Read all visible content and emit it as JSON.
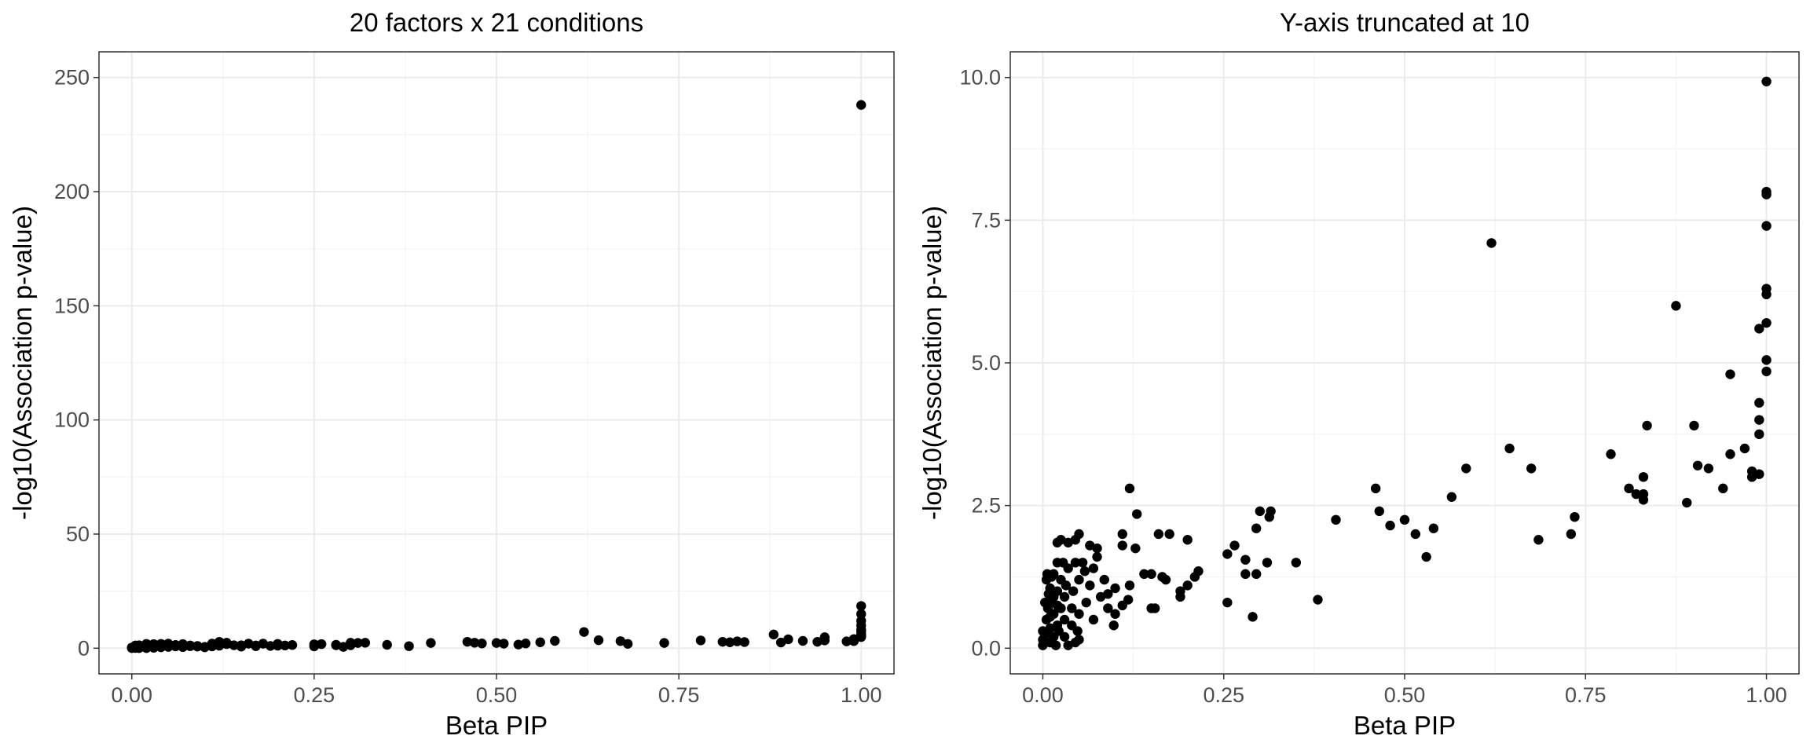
{
  "chart_data": [
    {
      "type": "scatter",
      "title": "20 factors x 21 conditions",
      "xlabel": "Beta PIP",
      "ylabel": "-log10(Association p-value)",
      "xlim": [
        0,
        1
      ],
      "ylim": [
        0,
        250
      ],
      "x_ticks": [
        "0.00",
        "0.25",
        "0.50",
        "0.75",
        "1.00"
      ],
      "y_ticks": [
        "0",
        "50",
        "100",
        "150",
        "200",
        "250"
      ],
      "grid": true,
      "points": [
        [
          1.0,
          238
        ],
        [
          1.0,
          18.5
        ],
        [
          1.0,
          15.0
        ],
        [
          1.0,
          12.0
        ],
        [
          1.0,
          9.9
        ],
        [
          1.0,
          8.0
        ],
        [
          1.0,
          7.4
        ],
        [
          1.0,
          6.2
        ],
        [
          1.0,
          5.6
        ],
        [
          1.0,
          4.9
        ],
        [
          0.99,
          4.0
        ],
        [
          0.99,
          3.1
        ],
        [
          0.98,
          3.0
        ],
        [
          0.95,
          4.8
        ],
        [
          0.95,
          3.4
        ],
        [
          0.94,
          2.8
        ],
        [
          0.92,
          3.2
        ],
        [
          0.9,
          3.9
        ],
        [
          0.89,
          2.5
        ],
        [
          0.88,
          6.0
        ],
        [
          0.84,
          2.7
        ],
        [
          0.83,
          3.0
        ],
        [
          0.82,
          2.6
        ],
        [
          0.81,
          2.8
        ],
        [
          0.78,
          3.4
        ],
        [
          0.73,
          2.3
        ],
        [
          0.68,
          1.9
        ],
        [
          0.67,
          3.1
        ],
        [
          0.64,
          3.5
        ],
        [
          0.62,
          7.1
        ],
        [
          0.58,
          3.2
        ],
        [
          0.56,
          2.6
        ],
        [
          0.54,
          2.1
        ],
        [
          0.53,
          1.6
        ],
        [
          0.51,
          2.0
        ],
        [
          0.5,
          2.3
        ],
        [
          0.48,
          2.1
        ],
        [
          0.47,
          2.4
        ],
        [
          0.46,
          2.8
        ],
        [
          0.41,
          2.3
        ],
        [
          0.38,
          0.9
        ],
        [
          0.35,
          1.5
        ],
        [
          0.32,
          2.4
        ],
        [
          0.31,
          2.3
        ],
        [
          0.3,
          2.4
        ],
        [
          0.3,
          2.1
        ],
        [
          0.3,
          1.3
        ],
        [
          0.29,
          0.6
        ],
        [
          0.28,
          1.3
        ],
        [
          0.28,
          1.5
        ],
        [
          0.26,
          1.8
        ],
        [
          0.25,
          1.7
        ],
        [
          0.25,
          0.8
        ],
        [
          0.22,
          1.4
        ],
        [
          0.21,
          1.2
        ],
        [
          0.2,
          1.1
        ],
        [
          0.2,
          1.9
        ],
        [
          0.19,
          1.0
        ],
        [
          0.18,
          2.0
        ],
        [
          0.17,
          1.2
        ],
        [
          0.17,
          0.9
        ],
        [
          0.16,
          2.0
        ],
        [
          0.15,
          0.7
        ],
        [
          0.15,
          1.3
        ],
        [
          0.14,
          1.3
        ],
        [
          0.13,
          2.4
        ],
        [
          0.13,
          1.8
        ],
        [
          0.12,
          2.8
        ],
        [
          0.12,
          1.1
        ],
        [
          0.11,
          2.0
        ],
        [
          0.11,
          0.8
        ],
        [
          0.1,
          0.6
        ],
        [
          0.1,
          0.4
        ],
        [
          0.09,
          1.0
        ],
        [
          0.09,
          0.7
        ],
        [
          0.08,
          1.2
        ],
        [
          0.08,
          0.9
        ],
        [
          0.07,
          1.6
        ],
        [
          0.07,
          1.8
        ],
        [
          0.07,
          0.5
        ],
        [
          0.06,
          1.4
        ],
        [
          0.06,
          1.1
        ],
        [
          0.06,
          0.8
        ],
        [
          0.05,
          2.0
        ],
        [
          0.05,
          1.5
        ],
        [
          0.05,
          1.2
        ],
        [
          0.05,
          0.6
        ],
        [
          0.04,
          1.9
        ],
        [
          0.04,
          1.5
        ],
        [
          0.04,
          1.0
        ],
        [
          0.04,
          0.4
        ],
        [
          0.03,
          1.8
        ],
        [
          0.03,
          1.4
        ],
        [
          0.03,
          0.9
        ],
        [
          0.03,
          0.5
        ],
        [
          0.03,
          0.2
        ],
        [
          0.02,
          1.9
        ],
        [
          0.02,
          1.5
        ],
        [
          0.02,
          1.1
        ],
        [
          0.02,
          0.7
        ],
        [
          0.02,
          0.3
        ],
        [
          0.02,
          0.05
        ],
        [
          0.01,
          1.3
        ],
        [
          0.01,
          1.0
        ],
        [
          0.01,
          0.8
        ],
        [
          0.01,
          0.6
        ],
        [
          0.01,
          0.4
        ],
        [
          0.01,
          0.2
        ],
        [
          0.01,
          0.05
        ],
        [
          0.005,
          1.2
        ],
        [
          0.005,
          0.5
        ],
        [
          0.005,
          0.1
        ],
        [
          0.0,
          0.3
        ],
        [
          0.0,
          0.05
        ]
      ]
    },
    {
      "type": "scatter",
      "title": "Y-axis truncated at 10",
      "xlabel": "Beta PIP",
      "ylabel": "-log10(Association p-value)",
      "xlim": [
        0,
        1
      ],
      "ylim": [
        0,
        10
      ],
      "x_ticks": [
        "0.00",
        "0.25",
        "0.50",
        "0.75",
        "1.00"
      ],
      "y_ticks": [
        "0.0",
        "2.5",
        "5.0",
        "7.5",
        "10.0"
      ],
      "grid": true,
      "points": [
        [
          1.0,
          9.93
        ],
        [
          1.0,
          8.0
        ],
        [
          1.0,
          7.95
        ],
        [
          1.0,
          7.4
        ],
        [
          1.0,
          6.3
        ],
        [
          1.0,
          6.2
        ],
        [
          1.0,
          5.7
        ],
        [
          0.99,
          5.6
        ],
        [
          1.0,
          5.05
        ],
        [
          1.0,
          4.85
        ],
        [
          0.99,
          4.3
        ],
        [
          0.99,
          4.0
        ],
        [
          0.99,
          3.75
        ],
        [
          0.98,
          3.1
        ],
        [
          0.98,
          3.0
        ],
        [
          0.99,
          3.05
        ],
        [
          0.97,
          3.5
        ],
        [
          0.95,
          4.8
        ],
        [
          0.95,
          3.4
        ],
        [
          0.94,
          2.8
        ],
        [
          0.92,
          3.15
        ],
        [
          0.9,
          3.9
        ],
        [
          0.905,
          3.2
        ],
        [
          0.89,
          2.55
        ],
        [
          0.875,
          6.0
        ],
        [
          0.835,
          3.9
        ],
        [
          0.83,
          3.0
        ],
        [
          0.83,
          2.7
        ],
        [
          0.83,
          2.6
        ],
        [
          0.82,
          2.7
        ],
        [
          0.81,
          2.8
        ],
        [
          0.785,
          3.4
        ],
        [
          0.735,
          2.3
        ],
        [
          0.73,
          2.0
        ],
        [
          0.685,
          1.9
        ],
        [
          0.675,
          3.15
        ],
        [
          0.645,
          3.5
        ],
        [
          0.62,
          7.1
        ],
        [
          0.585,
          3.15
        ],
        [
          0.565,
          2.65
        ],
        [
          0.54,
          2.1
        ],
        [
          0.53,
          1.6
        ],
        [
          0.515,
          2.0
        ],
        [
          0.5,
          2.25
        ],
        [
          0.48,
          2.15
        ],
        [
          0.465,
          2.4
        ],
        [
          0.46,
          2.8
        ],
        [
          0.405,
          2.25
        ],
        [
          0.38,
          0.85
        ],
        [
          0.35,
          1.5
        ],
        [
          0.315,
          2.4
        ],
        [
          0.313,
          2.3
        ],
        [
          0.3,
          2.4
        ],
        [
          0.295,
          2.1
        ],
        [
          0.295,
          1.3
        ],
        [
          0.29,
          0.55
        ],
        [
          0.28,
          1.3
        ],
        [
          0.28,
          1.55
        ],
        [
          0.31,
          1.5
        ],
        [
          0.265,
          1.8
        ],
        [
          0.255,
          1.65
        ],
        [
          0.255,
          0.8
        ],
        [
          0.215,
          1.35
        ],
        [
          0.21,
          1.25
        ],
        [
          0.2,
          1.1
        ],
        [
          0.2,
          1.9
        ],
        [
          0.19,
          1.0
        ],
        [
          0.19,
          0.9
        ],
        [
          0.175,
          2.0
        ],
        [
          0.17,
          1.2
        ],
        [
          0.165,
          1.25
        ],
        [
          0.16,
          2.0
        ],
        [
          0.155,
          0.7
        ],
        [
          0.15,
          1.3
        ],
        [
          0.15,
          0.7
        ],
        [
          0.14,
          1.3
        ],
        [
          0.13,
          2.35
        ],
        [
          0.128,
          1.75
        ],
        [
          0.12,
          2.8
        ],
        [
          0.12,
          1.1
        ],
        [
          0.118,
          0.85
        ],
        [
          0.11,
          2.0
        ],
        [
          0.11,
          1.8
        ],
        [
          0.11,
          0.75
        ],
        [
          0.1,
          1.05
        ],
        [
          0.1,
          0.6
        ],
        [
          0.098,
          0.4
        ],
        [
          0.09,
          0.95
        ],
        [
          0.09,
          0.7
        ],
        [
          0.085,
          1.2
        ],
        [
          0.08,
          0.9
        ],
        [
          0.075,
          1.6
        ],
        [
          0.075,
          1.75
        ],
        [
          0.07,
          1.4
        ],
        [
          0.07,
          0.5
        ],
        [
          0.065,
          1.8
        ],
        [
          0.065,
          1.1
        ],
        [
          0.06,
          0.8
        ],
        [
          0.058,
          1.35
        ],
        [
          0.055,
          1.5
        ],
        [
          0.05,
          2.0
        ],
        [
          0.05,
          1.2
        ],
        [
          0.05,
          0.6
        ],
        [
          0.048,
          0.3
        ],
        [
          0.045,
          1.9
        ],
        [
          0.045,
          1.5
        ],
        [
          0.042,
          1.0
        ],
        [
          0.04,
          0.7
        ],
        [
          0.04,
          0.4
        ],
        [
          0.035,
          1.85
        ],
        [
          0.035,
          1.4
        ],
        [
          0.032,
          1.1
        ],
        [
          0.03,
          0.9
        ],
        [
          0.03,
          0.5
        ],
        [
          0.03,
          0.2
        ],
        [
          0.028,
          1.5
        ],
        [
          0.025,
          1.9
        ],
        [
          0.025,
          1.2
        ],
        [
          0.025,
          0.7
        ],
        [
          0.022,
          0.3
        ],
        [
          0.02,
          1.85
        ],
        [
          0.02,
          1.5
        ],
        [
          0.02,
          1.0
        ],
        [
          0.02,
          0.75
        ],
        [
          0.02,
          0.4
        ],
        [
          0.018,
          0.05
        ],
        [
          0.015,
          1.3
        ],
        [
          0.015,
          0.9
        ],
        [
          0.015,
          0.6
        ],
        [
          0.015,
          0.2
        ],
        [
          0.012,
          1.25
        ],
        [
          0.01,
          1.05
        ],
        [
          0.01,
          0.8
        ],
        [
          0.01,
          0.55
        ],
        [
          0.01,
          0.35
        ],
        [
          0.01,
          0.1
        ],
        [
          0.008,
          0.95
        ],
        [
          0.007,
          0.7
        ],
        [
          0.006,
          1.3
        ],
        [
          0.005,
          1.2
        ],
        [
          0.005,
          0.5
        ],
        [
          0.004,
          0.25
        ],
        [
          0.003,
          0.8
        ],
        [
          0.002,
          0.1
        ],
        [
          0.0,
          0.3
        ],
        [
          0.0,
          0.15
        ],
        [
          0.0,
          0.05
        ],
        [
          0.035,
          0.05
        ],
        [
          0.045,
          0.1
        ],
        [
          0.05,
          0.15
        ]
      ]
    }
  ]
}
